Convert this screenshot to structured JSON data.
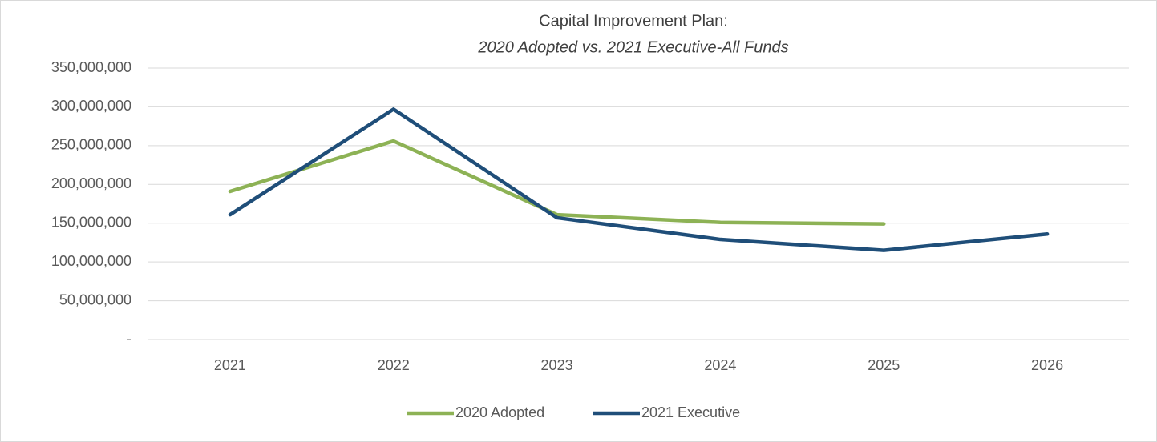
{
  "chart_data": {
    "type": "line",
    "title": "Capital Improvement Plan:",
    "subtitle": "2020 Adopted vs. 2021 Executive-All Funds",
    "categories": [
      "2021",
      "2022",
      "2023",
      "2024",
      "2025",
      "2026"
    ],
    "series": [
      {
        "name": "2020 Adopted",
        "color": "#8db255",
        "values": [
          191000000,
          256000000,
          161000000,
          151000000,
          149000000,
          null
        ]
      },
      {
        "name": "2021 Executive",
        "color": "#1f4e79",
        "values": [
          161000000,
          297000000,
          157000000,
          129000000,
          115000000,
          136000000
        ]
      }
    ],
    "ylim": [
      0,
      350000000
    ],
    "yticks": [
      {
        "value": 0,
        "label": "-"
      },
      {
        "value": 50000000,
        "label": "50,000,000"
      },
      {
        "value": 100000000,
        "label": "100,000,000"
      },
      {
        "value": 150000000,
        "label": "150,000,000"
      },
      {
        "value": 200000000,
        "label": "200,000,000"
      },
      {
        "value": 250000000,
        "label": "250,000,000"
      },
      {
        "value": 300000000,
        "label": "300,000,000"
      },
      {
        "value": 350000000,
        "label": "350,000,000"
      }
    ],
    "grid": true,
    "legend": "bottom"
  }
}
